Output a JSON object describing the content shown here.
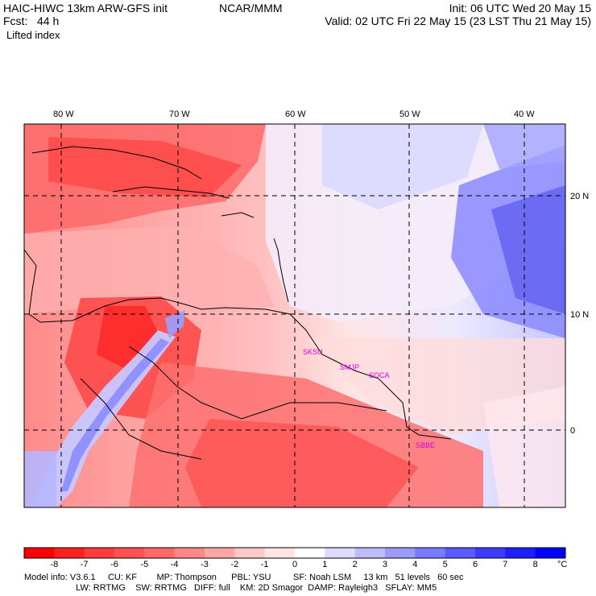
{
  "header": {
    "model_title": "HAIC-HIWC 13km ARW-GFS init",
    "org": "NCAR/MMM",
    "init": "Init: 06 UTC Wed 20 May 15",
    "fcst": "Fcst:   44 h",
    "valid": "Valid: 02 UTC Fri 22 May 15 (23 LST Thu 21 May 15)",
    "field": "Lifted index"
  },
  "map": {
    "lon_labels": [
      "80 W",
      "70 W",
      "60 W",
      "50 W",
      "40 W"
    ],
    "lat_labels": [
      "20 N",
      "10 N",
      "0"
    ],
    "stations": [
      "SKSU",
      "SMJP",
      "SOCA",
      "SBBE"
    ]
  },
  "colorbar": {
    "labels": [
      "-8",
      "-7",
      "-6",
      "-5",
      "-4",
      "-3",
      "-2",
      "-1",
      "0",
      "1",
      "2",
      "3",
      "4",
      "5",
      "6",
      "7",
      "8"
    ],
    "unit": "°C",
    "colors": [
      "#ff0000",
      "#ff2020",
      "#ff3b3b",
      "#fe5252",
      "#fe6a6a",
      "#fe8888",
      "#ffa6a6",
      "#ffc8c8",
      "#ffe4e4",
      "#ffffff",
      "#dcdcff",
      "#bcbcff",
      "#9a9aff",
      "#7a7aff",
      "#5a5aff",
      "#3c3cff",
      "#1e1eff",
      "#0000ff"
    ]
  },
  "footer": {
    "line1": "Model info: V3.6.1     CU: KF        MP: Thompson      PBL: YSU         SF: Noah LSM     13 km   51 levels   60 sec",
    "line2": "                     LW: RRTMG    SW: RRTMG   DIFF: full    KM: 2D Smagor  DAMP: Rayleigh3   SFLAY: MM5"
  }
}
